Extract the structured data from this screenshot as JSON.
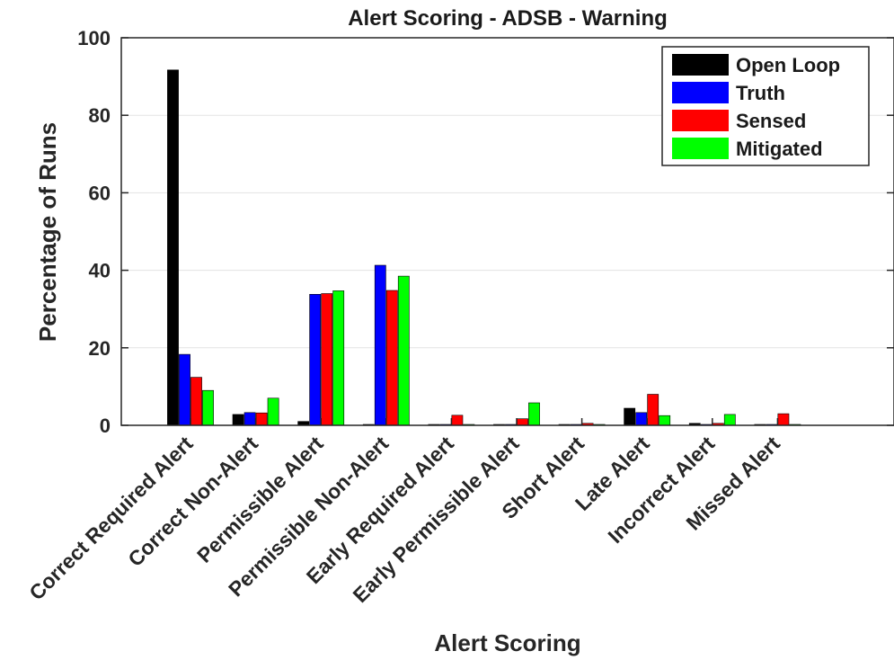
{
  "chart_data": {
    "type": "bar",
    "title": "Alert Scoring - ADSB - Warning",
    "xlabel": "Alert Scoring",
    "ylabel": "Percentage of Runs",
    "ylim": [
      0,
      100
    ],
    "yticks": [
      0,
      20,
      40,
      60,
      80,
      100
    ],
    "grid": "horizontal",
    "legend_position": "top-right",
    "categories": [
      "Correct Required Alert",
      "Correct Non-Alert",
      "Permissible Alert",
      "Permissible Non-Alert",
      "Early Required Alert",
      "Early Permissible Alert",
      "Short Alert",
      "Late Alert",
      "Incorrect Alert",
      "Missed Alert"
    ],
    "series": [
      {
        "name": "Open Loop",
        "color": "#000000",
        "values": [
          91.7,
          2.8,
          1.0,
          0,
          0,
          0,
          0,
          4.4,
          0.5,
          0
        ]
      },
      {
        "name": "Truth",
        "color": "#0000ff",
        "values": [
          18.3,
          3.3,
          33.8,
          41.3,
          0,
          0,
          0,
          3.3,
          0,
          0
        ]
      },
      {
        "name": "Sensed",
        "color": "#ff0000",
        "values": [
          12.4,
          3.2,
          34.0,
          34.8,
          2.6,
          1.7,
          0.5,
          8.0,
          0.5,
          3.0
        ]
      },
      {
        "name": "Mitigated",
        "color": "#00ff00",
        "values": [
          9.0,
          7.0,
          34.7,
          38.5,
          0.2,
          5.8,
          0.2,
          2.5,
          2.8,
          0.2
        ]
      }
    ]
  }
}
